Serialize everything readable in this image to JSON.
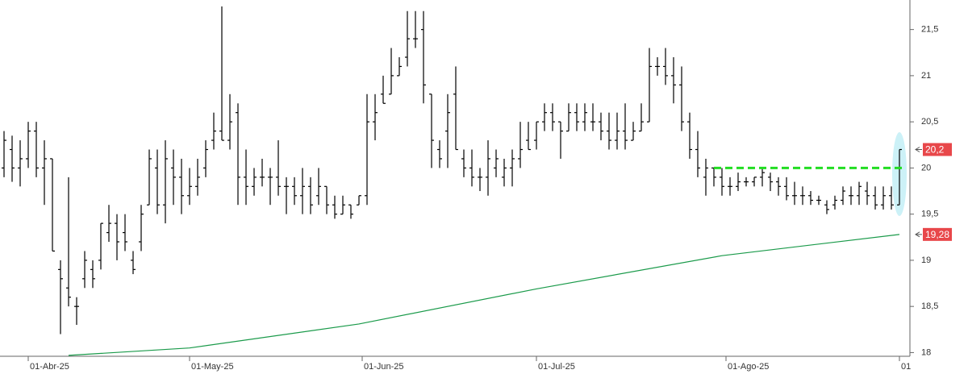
{
  "chart_data": {
    "type": "ohlc",
    "x": [
      0,
      1,
      2,
      3,
      4,
      5,
      6,
      7,
      8,
      9,
      10,
      11,
      12,
      13,
      14,
      15,
      16,
      17,
      18,
      19,
      20,
      21,
      22,
      23,
      24,
      25,
      26,
      27,
      28,
      29,
      30,
      31,
      32,
      33,
      34,
      35,
      36,
      37,
      38,
      39,
      40,
      41,
      42,
      43,
      44,
      45,
      46,
      47,
      48,
      49,
      50,
      51,
      52,
      53,
      54,
      55,
      56,
      57,
      58,
      59,
      60,
      61,
      62,
      63,
      64,
      65,
      66,
      67,
      68,
      69,
      70,
      71,
      72,
      73,
      74,
      75,
      76,
      77,
      78,
      79,
      80,
      81,
      82,
      83,
      84,
      85,
      86,
      87,
      88,
      89,
      90,
      91,
      92,
      93,
      94,
      95,
      96,
      97,
      98,
      99,
      100,
      101,
      102,
      103,
      104,
      105,
      106,
      107,
      108,
      109,
      110,
      111
    ],
    "open": [
      20.0,
      20.2,
      20.0,
      20.1,
      20.4,
      20.0,
      20.1,
      18.9,
      18.7,
      18.5,
      18.8,
      18.9,
      19.0,
      19.3,
      19.4,
      19.3,
      19.0,
      19.2,
      19.6,
      20.0,
      19.6,
      20.0,
      19.9,
      19.7,
      19.8,
      20.0,
      20.3,
      20.4,
      20.3,
      20.6,
      19.9,
      19.8,
      19.9,
      19.9,
      19.9,
      19.8,
      19.8,
      19.7,
      19.8,
      19.7,
      19.8,
      19.6,
      19.5,
      19.6,
      19.6,
      19.7,
      20.5,
      20.8,
      20.8,
      21.0,
      21.2,
      21.4,
      21.5,
      20.8,
      20.2,
      20.4,
      20.8,
      20.1,
      20.0,
      19.9,
      19.9,
      20.0,
      19.9,
      20.0,
      20.1,
      20.3,
      20.3,
      20.5,
      20.6,
      20.5,
      20.4,
      20.6,
      20.5,
      20.5,
      20.5,
      20.4,
      20.3,
      20.4,
      20.3,
      20.4,
      20.5,
      21.1,
      21.1,
      21.0,
      20.9,
      20.5,
      20.2,
      19.9,
      20.0,
      19.9,
      19.8,
      19.8,
      19.85,
      19.85,
      19.9,
      19.9,
      19.85,
      19.8,
      19.7,
      19.7,
      19.7,
      19.65,
      19.6,
      19.6,
      19.65,
      19.7,
      19.7,
      19.75,
      19.7,
      19.6,
      19.7,
      19.6
    ],
    "high": [
      20.4,
      20.35,
      20.3,
      20.5,
      20.5,
      20.3,
      20.1,
      19.0,
      19.9,
      18.6,
      19.1,
      19.0,
      19.4,
      19.6,
      19.5,
      19.5,
      19.1,
      19.6,
      20.2,
      20.2,
      20.3,
      20.2,
      20.1,
      20.0,
      20.1,
      20.3,
      20.6,
      21.75,
      20.8,
      20.7,
      20.2,
      20.0,
      20.1,
      20.0,
      20.3,
      19.9,
      19.9,
      20.0,
      19.9,
      20.0,
      19.8,
      19.7,
      19.7,
      19.6,
      19.7,
      20.8,
      20.8,
      21.0,
      21.3,
      21.2,
      21.7,
      21.7,
      21.7,
      20.8,
      20.3,
      20.8,
      21.1,
      20.2,
      20.2,
      20.0,
      20.3,
      20.2,
      20.1,
      20.2,
      20.5,
      20.5,
      20.5,
      20.7,
      20.7,
      20.5,
      20.7,
      20.7,
      20.7,
      20.7,
      20.6,
      20.6,
      20.6,
      20.7,
      20.5,
      20.7,
      21.3,
      21.2,
      21.3,
      21.2,
      21.1,
      20.6,
      20.4,
      20.1,
      20.0,
      20.0,
      19.9,
      19.95,
      19.9,
      19.9,
      20.0,
      19.95,
      19.9,
      19.9,
      19.85,
      19.8,
      19.75,
      19.7,
      19.65,
      19.7,
      19.8,
      19.8,
      19.85,
      19.85,
      19.8,
      19.8,
      19.8,
      20.2
    ],
    "low": [
      19.9,
      19.85,
      19.8,
      20.0,
      19.9,
      19.6,
      19.1,
      18.2,
      18.5,
      18.3,
      18.7,
      18.7,
      18.9,
      19.2,
      19.0,
      19.1,
      18.85,
      19.1,
      19.6,
      19.5,
      19.4,
      19.6,
      19.5,
      19.6,
      19.7,
      19.9,
      20.2,
      20.3,
      20.2,
      19.6,
      19.6,
      19.7,
      19.8,
      19.6,
      19.7,
      19.5,
      19.6,
      19.5,
      19.5,
      19.6,
      19.5,
      19.45,
      19.5,
      19.45,
      19.6,
      19.6,
      20.3,
      20.7,
      20.8,
      21.0,
      21.1,
      21.3,
      20.7,
      20.0,
      20.0,
      20.0,
      20.2,
      19.9,
      19.8,
      19.75,
      19.7,
      19.9,
      19.8,
      19.8,
      20.0,
      20.2,
      20.2,
      20.4,
      20.4,
      20.1,
      20.4,
      20.4,
      20.4,
      20.4,
      20.3,
      20.2,
      20.2,
      20.2,
      20.3,
      20.4,
      20.5,
      21.0,
      20.9,
      20.7,
      20.4,
      20.1,
      19.9,
      19.7,
      19.8,
      19.7,
      19.7,
      19.75,
      19.8,
      19.8,
      19.8,
      19.75,
      19.7,
      19.65,
      19.6,
      19.6,
      19.6,
      19.6,
      19.5,
      19.55,
      19.6,
      19.6,
      19.6,
      19.6,
      19.55,
      19.55,
      19.55,
      19.6
    ],
    "close": [
      20.3,
      20.0,
      20.1,
      20.4,
      20.0,
      20.1,
      19.1,
      18.8,
      18.6,
      18.5,
      19.0,
      18.8,
      19.4,
      19.4,
      19.2,
      19.2,
      18.9,
      19.5,
      20.1,
      19.6,
      20.1,
      19.9,
      19.7,
      19.8,
      19.9,
      20.2,
      20.4,
      20.3,
      20.5,
      19.9,
      19.8,
      19.9,
      19.9,
      19.9,
      19.8,
      19.8,
      19.7,
      19.8,
      19.6,
      19.8,
      19.6,
      19.5,
      19.6,
      19.5,
      19.7,
      20.5,
      20.6,
      20.7,
      21.0,
      21.1,
      21.4,
      21.4,
      20.9,
      20.3,
      20.1,
      20.6,
      20.2,
      20.0,
      19.9,
      19.9,
      20.1,
      20.1,
      20.0,
      20.1,
      20.2,
      20.2,
      20.5,
      20.6,
      20.5,
      20.4,
      20.6,
      20.5,
      20.6,
      20.5,
      20.4,
      20.3,
      20.4,
      20.3,
      20.4,
      20.5,
      21.1,
      21.1,
      21.0,
      20.9,
      20.5,
      20.2,
      20.0,
      20.0,
      19.9,
      19.8,
      19.8,
      19.85,
      19.85,
      19.9,
      19.95,
      19.85,
      19.8,
      19.7,
      19.7,
      19.7,
      19.65,
      19.65,
      19.55,
      19.65,
      19.75,
      19.7,
      19.8,
      19.7,
      19.6,
      19.7,
      19.6,
      20.2
    ],
    "bar_color": "#000000",
    "moving_average": {
      "color": "#1a9a4a",
      "x": [
        8,
        23,
        44,
        66,
        89,
        111
      ],
      "values": [
        17.97,
        18.05,
        18.31,
        18.69,
        19.05,
        19.28
      ]
    },
    "reference_line": {
      "value": 20,
      "from": 88,
      "to": 111.5,
      "color": "#22dd22"
    },
    "last_price": {
      "value": 20.2,
      "label": "20,2"
    },
    "ma_last": {
      "value": 19.28,
      "label": "19,28"
    },
    "xlim": [
      -0.5,
      112.3
    ],
    "ylim": [
      17.96,
      21.82
    ],
    "xticks": [
      {
        "value": 3,
        "label": "01-Abr-25"
      },
      {
        "value": 23,
        "label": "01-May-25"
      },
      {
        "value": 44.4,
        "label": "01-Jun-25"
      },
      {
        "value": 66,
        "label": "01-Jul-25"
      },
      {
        "value": 89.5,
        "label": "01-Ago-25"
      },
      {
        "value": 111,
        "label": "01"
      }
    ],
    "yticks": [
      18,
      {
        "value": 18.5,
        "label": "18,5"
      },
      19,
      {
        "value": 19.5,
        "label": "19,5"
      },
      20,
      {
        "value": 20.5,
        "label": "20,5"
      },
      21,
      {
        "value": 21.5,
        "label": "21,5"
      }
    ],
    "grid": false
  }
}
